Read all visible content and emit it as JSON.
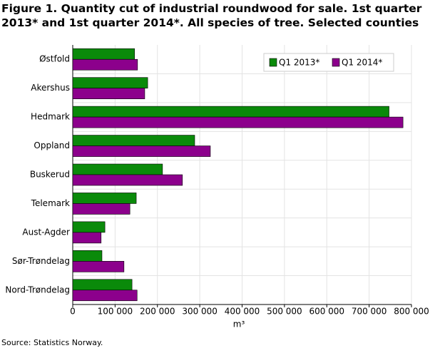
{
  "chart_data": {
    "type": "hbar",
    "title": "Figure 1. Quantity cut of industrial roundwood for sale. 1st quarter 2013* and 1st quarter 2014*. All species of tree. Selected counties",
    "categories": [
      "Østfold",
      "Akershus",
      "Hedmark",
      "Oppland",
      "Buskerud",
      "Telemark",
      "Aust-Agder",
      "Sør-Trøndelag",
      "Nord-Trøndelag"
    ],
    "series": [
      {
        "name": "Q1 2013*",
        "color": "#0a8a0a",
        "values": [
          146000,
          177000,
          747000,
          288000,
          212000,
          150000,
          76000,
          69000,
          140000
        ]
      },
      {
        "name": "Q1 2014*",
        "color": "#8c008c",
        "values": [
          153000,
          170000,
          780000,
          325000,
          259000,
          135000,
          67000,
          121000,
          152000
        ]
      }
    ],
    "xlim": [
      0,
      800000
    ],
    "xticks": [
      0,
      {
        "value": 100000,
        "label": "100 000"
      },
      {
        "value": 200000,
        "label": "200 000"
      },
      {
        "value": 300000,
        "label": "300 000"
      },
      {
        "value": 400000,
        "label": "400 000"
      },
      {
        "value": 500000,
        "label": "500 000"
      },
      {
        "value": 600000,
        "label": "600 000"
      },
      {
        "value": 700000,
        "label": "700 000"
      },
      {
        "value": 800000,
        "label": "800 000"
      }
    ],
    "xlabel": "m³",
    "grid": true,
    "legend": "upper right",
    "source": "Source: Statistics Norway."
  }
}
